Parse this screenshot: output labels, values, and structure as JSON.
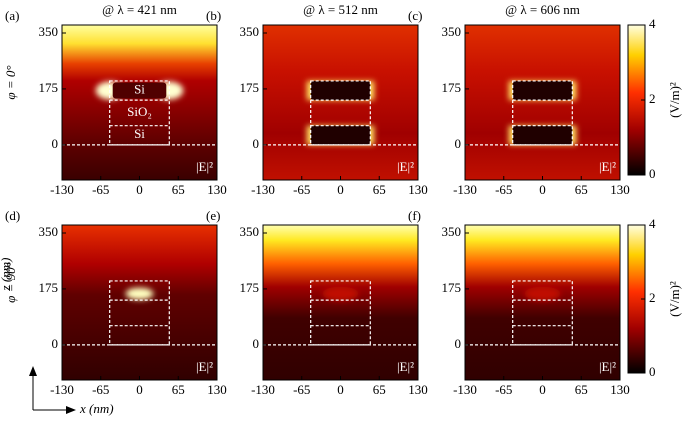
{
  "column_titles": [
    "@ λ = 421 nm",
    "@ λ = 512 nm",
    "@ λ = 606 nm"
  ],
  "row_labels": [
    "φ = 0°",
    "φ = 90°"
  ],
  "panel_labels": [
    "(a)",
    "(b)",
    "(c)",
    "(d)",
    "(e)",
    "(f)"
  ],
  "field_label": "|E|²",
  "structure_labels": [
    "Si",
    "SiO₂",
    "Si"
  ],
  "xlim": [
    -130,
    130
  ],
  "xticks": [
    -130,
    -65,
    0,
    65,
    130
  ],
  "ylim": [
    -110,
    375
  ],
  "yticks": [
    0,
    175,
    350
  ],
  "x_axis_label": "x (nm)",
  "z_axis_label": "z (nm)",
  "colorbar": {
    "lim": [
      0,
      4
    ],
    "ticks": [
      0,
      2,
      4
    ],
    "label": "(V/m)²"
  }
}
